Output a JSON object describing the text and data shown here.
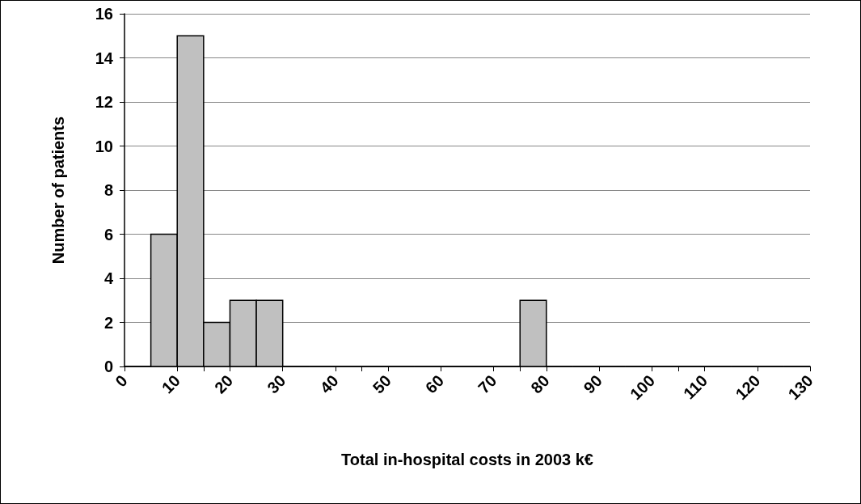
{
  "chart_data": {
    "type": "histogram",
    "xlabel": "Total in-hospital costs in 2003 k€",
    "ylabel": "Number of patients",
    "bins": [
      0,
      5,
      10,
      15,
      20,
      25,
      30,
      35,
      40,
      45,
      50,
      55,
      60,
      65,
      70,
      75,
      80,
      85,
      90,
      95,
      100,
      105,
      110,
      115,
      120,
      125,
      130
    ],
    "values": [
      0,
      6,
      15,
      2,
      3,
      3,
      0,
      0,
      0,
      0,
      0,
      0,
      0,
      0,
      0,
      3,
      0,
      0,
      0,
      0,
      0,
      0,
      0,
      0,
      0,
      0
    ],
    "color": "#c0c0c0",
    "xlim": [
      0,
      130
    ],
    "xticks": [
      0,
      10,
      20,
      30,
      40,
      50,
      60,
      70,
      80,
      90,
      100,
      110,
      120,
      130
    ],
    "ylim": [
      0,
      16
    ],
    "yticks": [
      0,
      2,
      4,
      6,
      8,
      10,
      12,
      14,
      16
    ],
    "grid": "y"
  }
}
